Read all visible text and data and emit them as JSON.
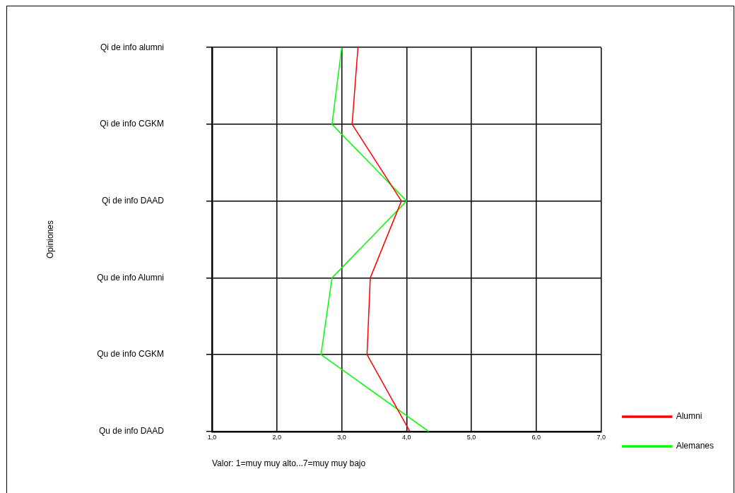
{
  "chart_data": {
    "type": "line",
    "orientation": "horizontal",
    "xlabel": "Valor: 1=muy muy alto...7=muy muy bajo",
    "ylabel": "Opiniones",
    "categories": [
      "Qi de info alumni",
      "Qi de info CGKM",
      "Qi de info DAAD",
      "Qu de info Alumni",
      "Qu de info CGKM",
      "Qu de info DAAD"
    ],
    "series": [
      {
        "name": "Alumni",
        "color": "#ff0000",
        "values": [
          3.25,
          3.16,
          3.92,
          3.44,
          3.39,
          4.05
        ]
      },
      {
        "name": "Alemanes",
        "color": "#00ff00",
        "values": [
          3.0,
          2.85,
          4.0,
          2.85,
          2.68,
          4.34
        ]
      }
    ],
    "xlim": [
      1,
      7
    ],
    "xticks": [
      {
        "value": 1,
        "label": "1,0"
      },
      {
        "value": 2,
        "label": "2,0"
      },
      {
        "value": 3,
        "label": "3,0"
      },
      {
        "value": 4,
        "label": "4,0"
      },
      {
        "value": 5,
        "label": "5,0"
      },
      {
        "value": 6,
        "label": "6,0"
      },
      {
        "value": 7,
        "label": "7,0"
      }
    ],
    "grid": true,
    "legend": "bottom right",
    "marker": "none",
    "line_style": "solid"
  }
}
